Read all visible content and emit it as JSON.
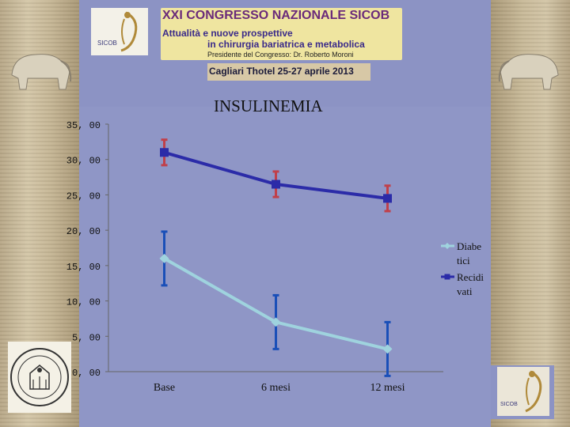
{
  "header": {
    "logo_text": "SICOB",
    "title": "XXI CONGRESSO NAZIONALE SICOB",
    "subtitle_line1": "Attualità e nuove prospettive",
    "subtitle_line2": "in chirurgia bariatrica e metabolica",
    "president": "Presidente del Congresso: Dr. Roberto Moroni",
    "date": "Cagliari Thotel 25-27 aprile 2013"
  },
  "footer": {
    "logo_text": "SICOB"
  },
  "chart_data": {
    "type": "line",
    "title": "INSULINEMIA",
    "categories": [
      "Base",
      "6 mesi",
      "12 mesi"
    ],
    "y_ticks": [
      "0, 00",
      "5, 00",
      "10, 00",
      "15, 00",
      "20, 00",
      "25, 00",
      "30, 00",
      "35, 00"
    ],
    "ylim": [
      0,
      35
    ],
    "grid": false,
    "legend_position": "right",
    "series": [
      {
        "name": "Diabetici",
        "legend_lines": [
          "Diabe",
          "tici"
        ],
        "values": [
          16,
          7,
          3.2
        ],
        "error": [
          3.8,
          3.8,
          3.8
        ],
        "color": "#9fd3de",
        "error_color": "#1a4fb8",
        "marker": "diamond"
      },
      {
        "name": "Recidivati",
        "legend_lines": [
          "Recidi",
          "vati"
        ],
        "values": [
          31,
          26.5,
          24.5
        ],
        "error": [
          1.8,
          1.8,
          1.8
        ],
        "color": "#2b2ba8",
        "error_color": "#c0404a",
        "marker": "square"
      }
    ]
  }
}
